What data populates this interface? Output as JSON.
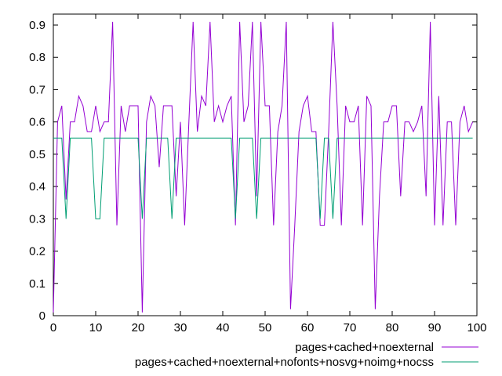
{
  "chart_data": {
    "type": "line",
    "title": "",
    "xlabel": "",
    "ylabel": "",
    "xlim": [
      0,
      100
    ],
    "ylim": [
      0,
      0.92
    ],
    "x_ticks": [
      "0",
      "10",
      "20",
      "30",
      "40",
      "50",
      "60",
      "70",
      "80",
      "90",
      "100"
    ],
    "y_ticks": [
      "0",
      "0.1",
      "0.2",
      "0.3",
      "0.4",
      "0.5",
      "0.6",
      "0.7",
      "0.8",
      "0.9"
    ],
    "grid": false,
    "legend_position": "bottom-right, outside plot",
    "series": [
      {
        "name": "pages+cached+noexternal",
        "color": "#9400d3",
        "x": [
          0,
          1,
          2,
          3,
          4,
          5,
          6,
          7,
          8,
          9,
          10,
          11,
          12,
          13,
          14,
          15,
          16,
          17,
          18,
          19,
          20,
          21,
          22,
          23,
          24,
          25,
          26,
          27,
          28,
          29,
          30,
          31,
          32,
          33,
          34,
          35,
          36,
          37,
          38,
          39,
          40,
          41,
          42,
          43,
          44,
          45,
          46,
          47,
          48,
          49,
          50,
          51,
          52,
          53,
          54,
          55,
          56,
          57,
          58,
          59,
          60,
          61,
          62,
          63,
          64,
          65,
          66,
          67,
          68,
          69,
          70,
          71,
          72,
          73,
          74,
          75,
          76,
          77,
          78,
          79,
          80,
          81,
          82,
          83,
          84,
          85,
          86,
          87,
          88,
          89,
          90,
          91,
          92,
          93,
          94,
          95,
          96,
          97,
          98,
          99
        ],
        "values": [
          0.01,
          0.6,
          0.65,
          0.36,
          0.6,
          0.6,
          0.68,
          0.65,
          0.57,
          0.57,
          0.65,
          0.57,
          0.6,
          0.6,
          0.91,
          0.28,
          0.65,
          0.57,
          0.65,
          0.65,
          0.65,
          0.01,
          0.6,
          0.68,
          0.65,
          0.46,
          0.65,
          0.65,
          0.65,
          0.37,
          0.6,
          0.28,
          0.6,
          0.91,
          0.57,
          0.68,
          0.65,
          0.91,
          0.6,
          0.65,
          0.6,
          0.65,
          0.68,
          0.28,
          0.91,
          0.6,
          0.65,
          0.91,
          0.37,
          0.91,
          0.65,
          0.65,
          0.28,
          0.57,
          0.65,
          0.91,
          0.02,
          0.28,
          0.57,
          0.65,
          0.68,
          0.57,
          0.57,
          0.28,
          0.28,
          0.57,
          0.91,
          0.65,
          0.28,
          0.65,
          0.6,
          0.6,
          0.65,
          0.28,
          0.68,
          0.65,
          0.02,
          0.37,
          0.6,
          0.6,
          0.65,
          0.65,
          0.37,
          0.6,
          0.6,
          0.57,
          0.6,
          0.65,
          0.37,
          0.91,
          0.28,
          0.68,
          0.28,
          0.6,
          0.6,
          0.28,
          0.6,
          0.65,
          0.57,
          0.6
        ]
      },
      {
        "name": "pages+cached+noexternal+nofonts+nosvg+noimg+nocss",
        "color": "#009e73",
        "x": [
          0,
          1,
          2,
          3,
          4,
          5,
          6,
          7,
          8,
          9,
          10,
          11,
          12,
          13,
          14,
          15,
          16,
          17,
          18,
          19,
          20,
          21,
          22,
          23,
          24,
          25,
          26,
          27,
          28,
          29,
          30,
          31,
          32,
          33,
          34,
          35,
          36,
          37,
          38,
          39,
          40,
          41,
          42,
          43,
          44,
          45,
          46,
          47,
          48,
          49,
          50,
          51,
          52,
          53,
          54,
          55,
          56,
          57,
          58,
          59,
          60,
          61,
          62,
          63,
          64,
          65,
          66,
          67,
          68,
          69,
          70,
          71,
          72,
          73,
          74,
          75,
          76,
          77,
          78,
          79,
          80,
          81,
          82,
          83,
          84,
          85,
          86,
          87,
          88,
          89,
          90,
          91,
          92,
          93,
          94,
          95,
          96,
          97,
          98,
          99
        ],
        "values": [
          0.55,
          0.55,
          0.55,
          0.3,
          0.55,
          0.55,
          0.55,
          0.55,
          0.55,
          0.55,
          0.3,
          0.3,
          0.55,
          0.55,
          0.55,
          0.55,
          0.55,
          0.55,
          0.55,
          0.55,
          0.55,
          0.3,
          0.55,
          0.55,
          0.55,
          0.55,
          0.55,
          0.55,
          0.3,
          0.55,
          0.55,
          0.55,
          0.55,
          0.55,
          0.55,
          0.55,
          0.55,
          0.55,
          0.55,
          0.55,
          0.55,
          0.55,
          0.55,
          0.3,
          0.55,
          0.55,
          0.55,
          0.55,
          0.3,
          0.55,
          0.55,
          0.55,
          0.55,
          0.55,
          0.55,
          0.55,
          0.55,
          0.55,
          0.55,
          0.55,
          0.55,
          0.55,
          0.55,
          0.3,
          0.55,
          0.55,
          0.3,
          0.55,
          0.55,
          0.55,
          0.55,
          0.55,
          0.55,
          0.55,
          0.55,
          0.55,
          0.55,
          0.55,
          0.55,
          0.55,
          0.55,
          0.55,
          0.55,
          0.55,
          0.55,
          0.55,
          0.55,
          0.55,
          0.55,
          0.55,
          0.55,
          0.55,
          0.55,
          0.55,
          0.55,
          0.55,
          0.55,
          0.55,
          0.55,
          0.55
        ]
      }
    ]
  }
}
